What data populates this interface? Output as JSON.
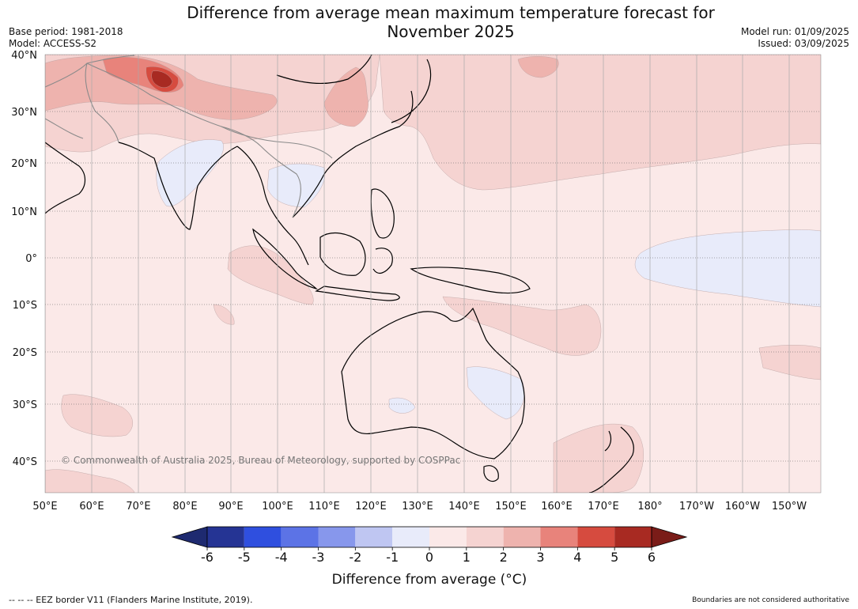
{
  "header": {
    "title_line1": "Difference from average mean maximum temperature forecast for",
    "title_line2": "November 2025",
    "base_period": "Base period: 1981-2018",
    "model": "Model: ACCESS-S2",
    "model_run": "Model run: 01/09/2025",
    "issued": "Issued: 03/09/2025"
  },
  "map": {
    "lat_labels": [
      "40°N",
      "30°N",
      "20°N",
      "10°N",
      "0°",
      "10°S",
      "20°S",
      "30°S",
      "40°S"
    ],
    "lon_labels": [
      "50°E",
      "60°E",
      "70°E",
      "80°E",
      "90°E",
      "100°E",
      "110°E",
      "120°E",
      "130°E",
      "140°E",
      "150°E",
      "160°E",
      "170°E",
      "180°",
      "170°W",
      "160°W",
      "150°W"
    ],
    "copyright": "© Commonwealth of Australia 2025, Bureau of Meteorology, supported by COSPPac",
    "colors": {
      "anom_0_1": "#fbe9e8",
      "anom_1_2": "#f5d3d1",
      "anom_2_3": "#eeb3ae",
      "anom_3_4": "#e8837b",
      "anom_4_5": "#d64b3f",
      "anom_5_6": "#a82a22",
      "anom_m1_0": "#e8ebfa",
      "anom_m2_m1": "#bfc6f2",
      "coast": "#000000",
      "border": "#8a8a8a"
    }
  },
  "colorbar": {
    "ticks": [
      "-6",
      "-5",
      "-4",
      "-3",
      "-2",
      "-1",
      "0",
      "1",
      "2",
      "3",
      "4",
      "5",
      "6"
    ],
    "colors": [
      "#253494",
      "#2f4fdf",
      "#5c73e6",
      "#8797ec",
      "#bfc6f2",
      "#e8ebfa",
      "#fbe9e8",
      "#f5d3d1",
      "#eeb3ae",
      "#e8837b",
      "#d64b3f",
      "#a82a22"
    ],
    "under_color": "#1e2a70",
    "over_color": "#7a1c18",
    "label": "Difference from average (°C)"
  },
  "footer": {
    "eez_note": "--  --  -- EEZ border V11 (Flanders Marine Institute, 2019).",
    "disclaimer": "Boundaries are not considered authoritative"
  }
}
